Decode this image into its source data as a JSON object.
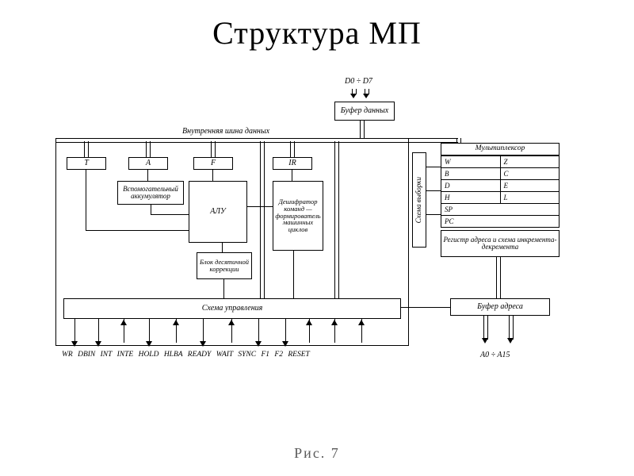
{
  "title": "Структура МП",
  "caption": "Рис. 7",
  "labels": {
    "data_pins": "D0 ÷ D7",
    "buf_data": "Буфер данных",
    "inner_bus": "Внутренняя шина данных",
    "T": "T",
    "A": "A",
    "F": "F",
    "IR": "IR",
    "aux_acc": "Вспомогательный аккумулятор",
    "alu": "АЛУ",
    "dec": "Дешифратор команд — формирователь машинных циклов",
    "bcd": "Блок десятичной коррекции",
    "ctrl": "Схема управления",
    "sel": "Схема выборки",
    "mux": "Мультиплексор",
    "reg_addr": "Регистр адреса и схема инкремента-декремента",
    "buf_addr": "Буфер адреса",
    "addr_pins": "A0 ÷ A15",
    "ctrl_pins": "WR  DBIN  INT  INTE  HOLD  HLBA  READY  WAIT  SYNC  F1     F2   RESET"
  },
  "registers": [
    [
      "W",
      "Z"
    ],
    [
      "B",
      "C"
    ],
    [
      "D",
      "E"
    ],
    [
      "H",
      "L"
    ],
    [
      "SP",
      ""
    ],
    [
      "PC",
      ""
    ]
  ],
  "style": {
    "bg": "#ffffff",
    "line": "#000000",
    "title_fontsize": 40,
    "label_fontsize": 10
  }
}
